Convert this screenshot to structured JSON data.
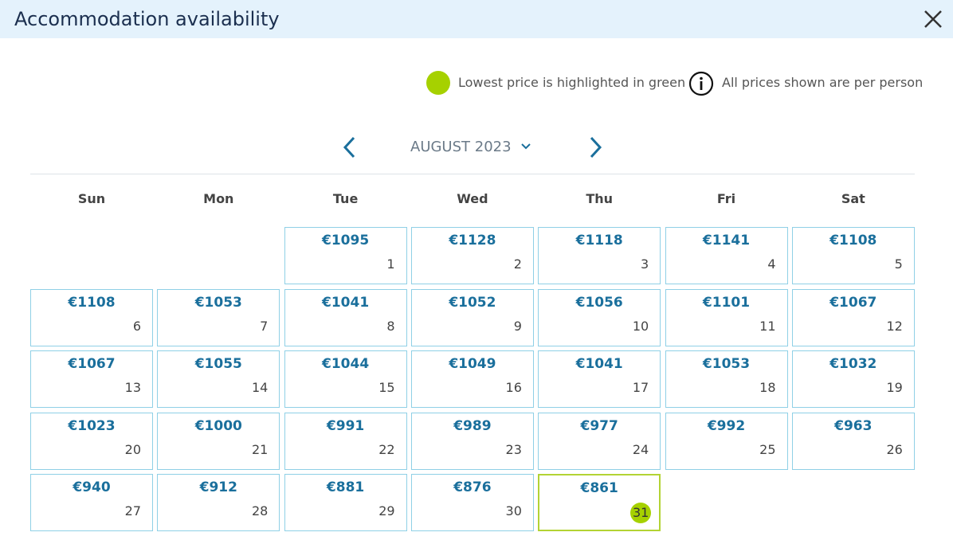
{
  "header": {
    "title": "Accommodation availability"
  },
  "legend": {
    "lowest": "Lowest price is highlighted in green",
    "info": "All prices shown are per person"
  },
  "calendar": {
    "month": "AUGUST 2023",
    "weekdays": [
      "Sun",
      "Mon",
      "Tue",
      "Wed",
      "Thu",
      "Fri",
      "Sat"
    ],
    "days": [
      {
        "day": 1,
        "price": "€1095"
      },
      {
        "day": 2,
        "price": "€1128"
      },
      {
        "day": 3,
        "price": "€1118"
      },
      {
        "day": 4,
        "price": "€1141"
      },
      {
        "day": 5,
        "price": "€1108"
      },
      {
        "day": 6,
        "price": "€1108"
      },
      {
        "day": 7,
        "price": "€1053"
      },
      {
        "day": 8,
        "price": "€1041"
      },
      {
        "day": 9,
        "price": "€1052"
      },
      {
        "day": 10,
        "price": "€1056"
      },
      {
        "day": 11,
        "price": "€1101"
      },
      {
        "day": 12,
        "price": "€1067"
      },
      {
        "day": 13,
        "price": "€1067"
      },
      {
        "day": 14,
        "price": "€1055"
      },
      {
        "day": 15,
        "price": "€1044"
      },
      {
        "day": 16,
        "price": "€1049"
      },
      {
        "day": 17,
        "price": "€1041"
      },
      {
        "day": 18,
        "price": "€1053"
      },
      {
        "day": 19,
        "price": "€1032"
      },
      {
        "day": 20,
        "price": "€1023"
      },
      {
        "day": 21,
        "price": "€1000"
      },
      {
        "day": 22,
        "price": "€991"
      },
      {
        "day": 23,
        "price": "€989"
      },
      {
        "day": 24,
        "price": "€977"
      },
      {
        "day": 25,
        "price": "€992"
      },
      {
        "day": 26,
        "price": "€963"
      },
      {
        "day": 27,
        "price": "€940"
      },
      {
        "day": 28,
        "price": "€912"
      },
      {
        "day": 29,
        "price": "€881"
      },
      {
        "day": 30,
        "price": "€876"
      },
      {
        "day": 31,
        "price": "€861",
        "lowest": true
      }
    ]
  }
}
